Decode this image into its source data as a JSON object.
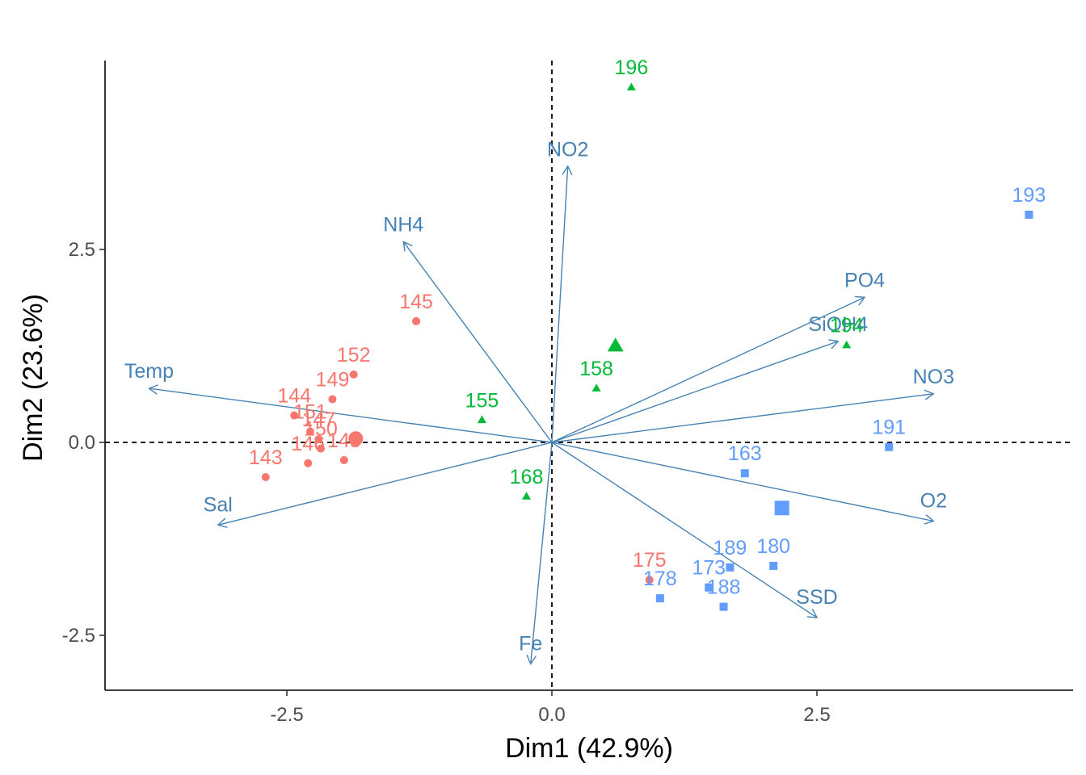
{
  "chart_data": {
    "type": "scatter",
    "subtype": "pca-biplot",
    "title": "",
    "xlabel": "Dim1 (42.9%)",
    "ylabel": "Dim2 (23.6%)",
    "xlim": [
      -4.2,
      4.95
    ],
    "ylim": [
      -3.2,
      4.95
    ],
    "xticks": [
      -2.5,
      0.0,
      2.5
    ],
    "yticks": [
      -2.5,
      0.0,
      2.5
    ],
    "xtick_labels": [
      "-2.5",
      "0.0",
      "2.5"
    ],
    "ytick_labels": [
      "-2.5",
      "0.0",
      "2.5"
    ],
    "grid": false,
    "reference_lines": "dashed lines at x=0 and y=0",
    "arrow_color": "#4682B4",
    "variables": [
      {
        "name": "NO2",
        "x": 0.15,
        "y": 3.58,
        "label_x": 0.15,
        "label_y": 3.8
      },
      {
        "name": "NH4",
        "x": -1.4,
        "y": 2.6,
        "label_x": -1.4,
        "label_y": 2.83
      },
      {
        "name": "Temp",
        "x": -3.8,
        "y": 0.7,
        "label_x": -3.8,
        "label_y": 0.93
      },
      {
        "name": "Sal",
        "x": -3.15,
        "y": -1.07,
        "label_x": -3.15,
        "label_y": -0.8
      },
      {
        "name": "Fe",
        "x": -0.2,
        "y": -2.87,
        "label_x": -0.2,
        "label_y": -2.6
      },
      {
        "name": "PO4",
        "x": 2.95,
        "y": 1.88,
        "label_x": 2.95,
        "label_y": 2.11
      },
      {
        "name": "SiOH4",
        "x": 2.7,
        "y": 1.31,
        "label_x": 2.7,
        "label_y": 1.54
      },
      {
        "name": "NO3",
        "x": 3.6,
        "y": 0.63,
        "label_x": 3.6,
        "label_y": 0.86
      },
      {
        "name": "O2",
        "x": 3.6,
        "y": -1.02,
        "label_x": 3.6,
        "label_y": -0.75
      },
      {
        "name": "SSD",
        "x": 2.5,
        "y": -2.27,
        "label_x": 2.5,
        "label_y": -2.0
      }
    ],
    "series": [
      {
        "group": 1,
        "color": "#F8766D",
        "marker": "circle",
        "points": [
          {
            "label": "145",
            "x": -1.28,
            "y": 1.57
          },
          {
            "label": "152",
            "x": -1.87,
            "y": 0.88
          },
          {
            "label": "149",
            "x": -2.07,
            "y": 0.56
          },
          {
            "label": "144",
            "x": -2.43,
            "y": 0.35
          },
          {
            "label": "151",
            "x": -2.28,
            "y": 0.14
          },
          {
            "label": "147",
            "x": -2.2,
            "y": 0.04
          },
          {
            "label": "150",
            "x": -2.18,
            "y": -0.08
          },
          {
            "label": "146",
            "x": -2.3,
            "y": -0.27
          },
          {
            "label": "148",
            "x": -1.96,
            "y": -0.23
          },
          {
            "label": "143",
            "x": -2.7,
            "y": -0.45
          },
          {
            "label": "175",
            "x": 0.92,
            "y": -1.78
          }
        ],
        "centroid": {
          "x": -1.85,
          "y": 0.05
        }
      },
      {
        "group": 2,
        "color": "#00BA38",
        "marker": "triangle",
        "points": [
          {
            "label": "196",
            "x": 0.75,
            "y": 4.6
          },
          {
            "label": "158",
            "x": 0.42,
            "y": 0.7
          },
          {
            "label": "155",
            "x": -0.66,
            "y": 0.29
          },
          {
            "label": "168",
            "x": -0.24,
            "y": -0.7
          },
          {
            "label": "194",
            "x": 2.78,
            "y": 1.26
          }
        ],
        "centroid": {
          "x": 0.6,
          "y": 1.25
        }
      },
      {
        "group": 3,
        "color": "#619CFF",
        "marker": "square",
        "points": [
          {
            "label": "193",
            "x": 4.5,
            "y": 2.95
          },
          {
            "label": "191",
            "x": 3.18,
            "y": -0.06
          },
          {
            "label": "163",
            "x": 1.82,
            "y": -0.4
          },
          {
            "label": "189",
            "x": 1.68,
            "y": -1.62
          },
          {
            "label": "180",
            "x": 2.09,
            "y": -1.6
          },
          {
            "label": "173",
            "x": 1.48,
            "y": -1.88
          },
          {
            "label": "178",
            "x": 1.02,
            "y": -2.02
          },
          {
            "label": "188",
            "x": 1.62,
            "y": -2.13
          }
        ],
        "centroid": {
          "x": 2.17,
          "y": -0.85
        }
      }
    ]
  }
}
